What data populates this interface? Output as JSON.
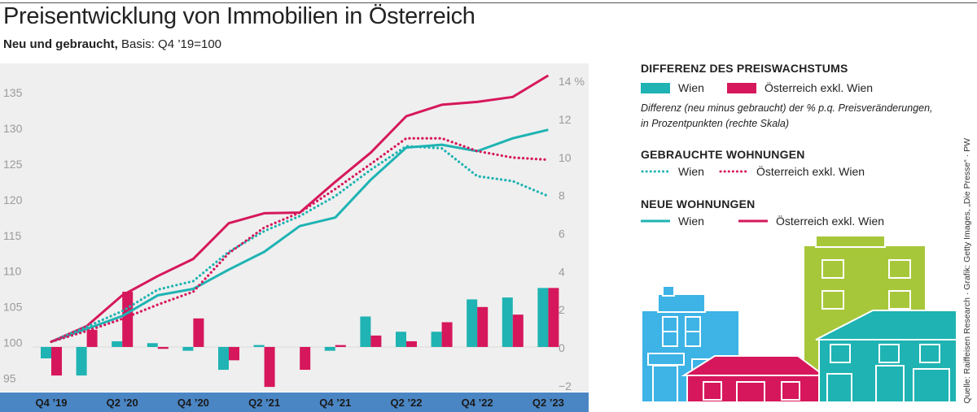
{
  "title": "Preisentwicklung von Immobilien in Österreich",
  "subtitle_bold": "Neu und gebraucht,",
  "subtitle_rest": " Basis: Q4 ’19=100",
  "colors": {
    "wien": "#1fb3b3",
    "oesterreich": "#d6175b",
    "axisbar": "#4b86c4",
    "plotbg": "#efefef"
  },
  "legend": {
    "diff_title": "DIFFERENZ DES PREISWACHSTUMS",
    "wien": "Wien",
    "oesterreich": "Österreich exkl. Wien",
    "diff_note_1": "Differenz (neu minus gebraucht) der % p.q. Preisveränderungen,",
    "diff_note_2": "in Prozentpunkten (rechte Skala)",
    "used_title": "GEBRAUCHTE WOHNUNGEN",
    "new_title": "NEUE WOHNUNGEN"
  },
  "source": "Quelle: Raiffeisen Research · Grafik: Getty Images, „Die Presse“ · PW",
  "chart_data": {
    "type": "line",
    "x": [
      "Q4 ’19",
      "Q1 ’20",
      "Q2 ’20",
      "Q3 ’20",
      "Q4 ’20",
      "Q1 ’21",
      "Q2 ’21",
      "Q3 ’21",
      "Q4 ’21",
      "Q1 ’22",
      "Q2 ’22",
      "Q3 ’22",
      "Q4 ’22",
      "Q1 ’23",
      "Q2 ’23"
    ],
    "x_tick_labels": [
      "Q4 ’19",
      "Q2 ’20",
      "Q4 ’20",
      "Q2 ’21",
      "Q4 ’21",
      "Q2 ’22",
      "Q4 ’22",
      "Q2 ’23"
    ],
    "y_left_ticks": [
      95,
      100,
      105,
      110,
      115,
      120,
      125,
      130,
      135
    ],
    "y_left_range": [
      93,
      139
    ],
    "y_right_ticks": [
      "−2",
      "0",
      "2",
      "4",
      "6",
      "8",
      "10",
      "12",
      "14 %"
    ],
    "y_right_values": [
      -2,
      0,
      2,
      4,
      6,
      8,
      10,
      12,
      14
    ],
    "y_right_range": [
      -2.35,
      14.9
    ],
    "series": [
      {
        "name": "Neue Wohnungen Wien",
        "style": "solid",
        "color": "wien",
        "values": [
          100,
          101.8,
          103.6,
          106.5,
          107.4,
          110.1,
          112.6,
          116.2,
          117.4,
          122.7,
          127.2,
          127.6,
          126.7,
          128.5,
          129.7
        ]
      },
      {
        "name": "Neue Wohnungen Österreich exkl. Wien",
        "style": "solid",
        "color": "oesterreich",
        "values": [
          100,
          102.2,
          106.5,
          109.2,
          111.6,
          116.6,
          118.0,
          118.1,
          122.4,
          126.5,
          131.6,
          133.2,
          133.6,
          134.3,
          137.3
        ]
      },
      {
        "name": "Gebrauchte Wohnungen Wien",
        "style": "dotted",
        "color": "wien",
        "values": [
          100,
          102.1,
          104.3,
          107.3,
          108.5,
          112.6,
          115.5,
          117.6,
          120.4,
          124.1,
          127.4,
          127.1,
          123.2,
          122.5,
          120.4
        ]
      },
      {
        "name": "Gebrauchte Wohnungen Österreich exkl. Wien",
        "style": "dotted",
        "color": "oesterreich",
        "values": [
          100,
          101.5,
          103.2,
          105.2,
          107.0,
          112.4,
          116.0,
          118.1,
          121.4,
          124.9,
          128.5,
          128.5,
          126.7,
          125.8,
          125.5
        ]
      }
    ],
    "bars": [
      {
        "name": "Differenz Wien",
        "color": "wien",
        "values": [
          -0.6,
          -1.5,
          0.3,
          0.2,
          -0.2,
          -1.2,
          0.1,
          0.0,
          -0.2,
          1.6,
          0.8,
          0.8,
          2.5,
          2.6,
          3.1
        ]
      },
      {
        "name": "Differenz Österreich exkl. Wien",
        "color": "oesterreich",
        "values": [
          -1.5,
          0.9,
          2.9,
          -0.1,
          1.5,
          -0.7,
          -2.1,
          -1.2,
          0.1,
          0.6,
          0.3,
          1.3,
          2.1,
          1.7,
          3.1
        ]
      }
    ]
  }
}
